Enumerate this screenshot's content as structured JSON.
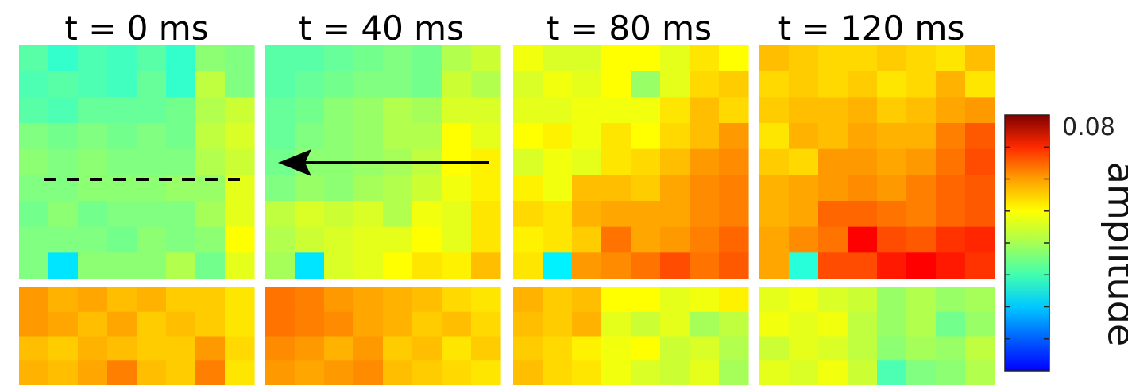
{
  "chart_data": {
    "type": "heatmap",
    "colorbar": {
      "label": "amplitude",
      "max_label": "0.08",
      "range": [
        0,
        0.08
      ],
      "colormap": "jet"
    },
    "panels": [
      {
        "title": "t = 0 ms",
        "top": [
          [
            0.037,
            0.034,
            0.036,
            0.035,
            0.037,
            0.034,
            0.041,
            0.04
          ],
          [
            0.036,
            0.037,
            0.036,
            0.035,
            0.038,
            0.034,
            0.045,
            0.04
          ],
          [
            0.037,
            0.036,
            0.038,
            0.038,
            0.038,
            0.039,
            0.044,
            0.046
          ],
          [
            0.04,
            0.039,
            0.04,
            0.039,
            0.04,
            0.039,
            0.045,
            0.047
          ],
          [
            0.041,
            0.04,
            0.041,
            0.04,
            0.04,
            0.04,
            0.044,
            0.046
          ],
          [
            0.04,
            0.04,
            0.041,
            0.041,
            0.041,
            0.042,
            0.042,
            0.048
          ],
          [
            0.039,
            0.041,
            0.039,
            0.04,
            0.04,
            0.04,
            0.043,
            0.048
          ],
          [
            0.04,
            0.04,
            0.04,
            0.039,
            0.041,
            0.04,
            0.041,
            0.05
          ],
          [
            0.04,
            0.028,
            0.041,
            0.041,
            0.041,
            0.044,
            0.039,
            0.048
          ]
        ],
        "bottom": [
          [
            0.058,
            0.056,
            0.057,
            0.055,
            0.056,
            0.054,
            0.054,
            0.052
          ],
          [
            0.058,
            0.057,
            0.055,
            0.057,
            0.054,
            0.055,
            0.054,
            0.052
          ],
          [
            0.055,
            0.054,
            0.056,
            0.055,
            0.054,
            0.054,
            0.058,
            0.053
          ],
          [
            0.056,
            0.055,
            0.057,
            0.06,
            0.055,
            0.054,
            0.06,
            0.052
          ]
        ]
      },
      {
        "title": "t = 40 ms",
        "top": [
          [
            0.037,
            0.037,
            0.038,
            0.039,
            0.04,
            0.039,
            0.044,
            0.046
          ],
          [
            0.037,
            0.038,
            0.039,
            0.04,
            0.04,
            0.039,
            0.046,
            0.044
          ],
          [
            0.038,
            0.039,
            0.041,
            0.042,
            0.044,
            0.043,
            0.047,
            0.047
          ],
          [
            0.038,
            0.04,
            0.041,
            0.042,
            0.044,
            0.044,
            0.05,
            0.048
          ],
          [
            0.039,
            0.041,
            0.041,
            0.042,
            0.043,
            0.045,
            0.05,
            0.051
          ],
          [
            0.04,
            0.042,
            0.041,
            0.043,
            0.044,
            0.046,
            0.049,
            0.051
          ],
          [
            0.045,
            0.047,
            0.046,
            0.047,
            0.044,
            0.049,
            0.048,
            0.052
          ],
          [
            0.044,
            0.046,
            0.047,
            0.048,
            0.048,
            0.05,
            0.048,
            0.052
          ],
          [
            0.043,
            0.028,
            0.047,
            0.048,
            0.05,
            0.052,
            0.051,
            0.055
          ]
        ],
        "bottom": [
          [
            0.061,
            0.06,
            0.058,
            0.057,
            0.056,
            0.055,
            0.053,
            0.052
          ],
          [
            0.061,
            0.06,
            0.059,
            0.057,
            0.056,
            0.054,
            0.055,
            0.053
          ],
          [
            0.059,
            0.058,
            0.056,
            0.058,
            0.054,
            0.055,
            0.052,
            0.054
          ],
          [
            0.058,
            0.057,
            0.058,
            0.059,
            0.055,
            0.054,
            0.053,
            0.052
          ]
        ]
      },
      {
        "title": "t = 80 ms",
        "top": [
          [
            0.049,
            0.047,
            0.047,
            0.05,
            0.05,
            0.048,
            0.052,
            0.05
          ],
          [
            0.047,
            0.049,
            0.048,
            0.05,
            0.042,
            0.048,
            0.053,
            0.054
          ],
          [
            0.048,
            0.048,
            0.049,
            0.049,
            0.049,
            0.052,
            0.055,
            0.053
          ],
          [
            0.05,
            0.051,
            0.049,
            0.052,
            0.05,
            0.053,
            0.055,
            0.058
          ],
          [
            0.047,
            0.049,
            0.048,
            0.052,
            0.053,
            0.055,
            0.058,
            0.059
          ],
          [
            0.051,
            0.049,
            0.055,
            0.055,
            0.054,
            0.057,
            0.059,
            0.06
          ],
          [
            0.053,
            0.052,
            0.056,
            0.057,
            0.057,
            0.057,
            0.059,
            0.06
          ],
          [
            0.051,
            0.052,
            0.054,
            0.061,
            0.057,
            0.058,
            0.06,
            0.062
          ],
          [
            0.052,
            0.029,
            0.058,
            0.059,
            0.061,
            0.064,
            0.061,
            0.063
          ]
        ],
        "bottom": [
          [
            0.056,
            0.054,
            0.055,
            0.05,
            0.05,
            0.048,
            0.049,
            0.051
          ],
          [
            0.055,
            0.054,
            0.056,
            0.048,
            0.046,
            0.048,
            0.043,
            0.045
          ],
          [
            0.054,
            0.053,
            0.051,
            0.049,
            0.05,
            0.046,
            0.047,
            0.044
          ],
          [
            0.055,
            0.053,
            0.052,
            0.049,
            0.047,
            0.046,
            0.048,
            0.043
          ]
        ]
      },
      {
        "title": "t = 120 ms",
        "top": [
          [
            0.055,
            0.054,
            0.053,
            0.053,
            0.054,
            0.053,
            0.052,
            0.055
          ],
          [
            0.053,
            0.054,
            0.053,
            0.054,
            0.052,
            0.053,
            0.056,
            0.052
          ],
          [
            0.054,
            0.055,
            0.055,
            0.056,
            0.054,
            0.055,
            0.057,
            0.058
          ],
          [
            0.052,
            0.056,
            0.055,
            0.057,
            0.056,
            0.056,
            0.06,
            0.063
          ],
          [
            0.054,
            0.053,
            0.058,
            0.058,
            0.057,
            0.058,
            0.061,
            0.064
          ],
          [
            0.056,
            0.057,
            0.058,
            0.059,
            0.058,
            0.06,
            0.062,
            0.063
          ],
          [
            0.056,
            0.057,
            0.062,
            0.062,
            0.061,
            0.06,
            0.062,
            0.063
          ],
          [
            0.057,
            0.059,
            0.061,
            0.07,
            0.064,
            0.063,
            0.066,
            0.067
          ],
          [
            0.057,
            0.033,
            0.064,
            0.064,
            0.068,
            0.07,
            0.068,
            0.066
          ]
        ],
        "bottom": [
          [
            0.048,
            0.049,
            0.047,
            0.046,
            0.042,
            0.044,
            0.042,
            0.043
          ],
          [
            0.049,
            0.048,
            0.049,
            0.045,
            0.042,
            0.044,
            0.039,
            0.042
          ],
          [
            0.046,
            0.048,
            0.047,
            0.045,
            0.041,
            0.043,
            0.042,
            0.045
          ],
          [
            0.048,
            0.047,
            0.049,
            0.046,
            0.036,
            0.04,
            0.041,
            0.044
          ]
        ]
      }
    ],
    "annotations": [
      {
        "kind": "dashed-line",
        "panel": "t = 0 ms"
      },
      {
        "kind": "arrow",
        "direction": "left",
        "panel": "t = 40 ms"
      }
    ]
  }
}
